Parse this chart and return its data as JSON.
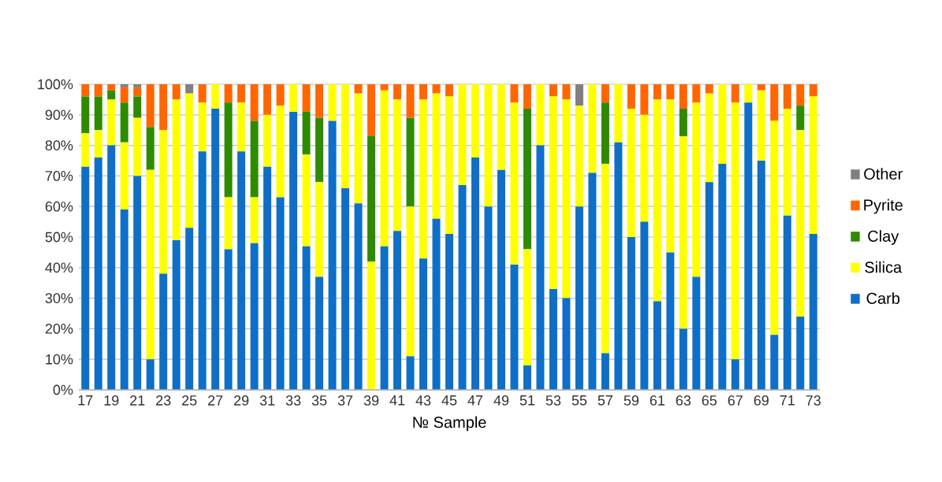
{
  "chart_data": {
    "type": "bar",
    "stacked": true,
    "xlabel": "№ Sample",
    "categories": [
      "17",
      null,
      "19",
      null,
      "21",
      null,
      "23",
      null,
      "25",
      null,
      "27",
      null,
      "29",
      null,
      "31",
      null,
      "33",
      null,
      "35",
      null,
      "37",
      null,
      "39",
      null,
      "41",
      null,
      "43",
      null,
      "45",
      null,
      "47",
      null,
      "49",
      null,
      "51",
      null,
      "53",
      null,
      "55",
      null,
      "57",
      null,
      "59",
      null,
      "61",
      null,
      "63",
      null,
      "65",
      null,
      "67",
      null,
      "69",
      null,
      "71",
      null,
      "73"
    ],
    "series": [
      {
        "name": "Carb",
        "color": "#0f6fc6",
        "values": [
          73,
          76,
          80,
          59,
          70,
          10,
          38,
          49,
          53,
          78,
          92,
          46,
          78,
          48,
          73,
          63,
          91,
          47,
          37,
          88,
          66,
          61,
          0,
          47,
          52,
          11,
          43,
          56,
          51,
          67,
          76,
          60,
          72,
          41,
          8,
          80,
          33,
          30,
          60,
          71,
          12,
          81,
          50,
          55,
          29,
          45,
          20,
          37,
          68,
          74,
          10,
          94,
          75,
          18,
          57,
          24,
          51
        ]
      },
      {
        "name": "Silica",
        "color": "#ffff00",
        "values": [
          11,
          9,
          15,
          22,
          19,
          62,
          47,
          46,
          44,
          16,
          8,
          17,
          16,
          15,
          17,
          30,
          9,
          30,
          31,
          12,
          34,
          36,
          42,
          51,
          43,
          49,
          52,
          41,
          45,
          33,
          24,
          40,
          28,
          53,
          38,
          20,
          63,
          65,
          33,
          29,
          62,
          19,
          42,
          35,
          66,
          50,
          63,
          57,
          29,
          26,
          84,
          6,
          23,
          70,
          35,
          61,
          45
        ]
      },
      {
        "name": "Clay",
        "color": "#2e8b00",
        "values": [
          12,
          11,
          3,
          13,
          7,
          14,
          0,
          0,
          0,
          0,
          0,
          31,
          0,
          25,
          0,
          0,
          0,
          14,
          21,
          0,
          0,
          0,
          41,
          0,
          0,
          29,
          0,
          0,
          0,
          0,
          0,
          0,
          0,
          0,
          46,
          0,
          0,
          0,
          0,
          0,
          20,
          0,
          0,
          0,
          0,
          0,
          9,
          0,
          0,
          0,
          0,
          0,
          0,
          0,
          0,
          8,
          0
        ]
      },
      {
        "name": "Pyrite",
        "color": "#ff6600",
        "values": [
          4,
          4,
          2,
          5,
          3,
          14,
          15,
          5,
          0,
          6,
          0,
          6,
          6,
          12,
          10,
          7,
          0,
          9,
          11,
          0,
          0,
          3,
          17,
          2,
          5,
          11,
          5,
          3,
          4,
          0,
          0,
          0,
          0,
          6,
          8,
          0,
          4,
          5,
          0,
          0,
          6,
          0,
          8,
          10,
          5,
          5,
          8,
          6,
          3,
          0,
          6,
          0,
          2,
          12,
          8,
          7,
          4
        ]
      },
      {
        "name": "Other",
        "color": "#808080",
        "values": [
          0,
          0,
          0,
          1,
          1,
          0,
          0,
          0,
          3,
          0,
          0,
          0,
          0,
          0,
          0,
          0,
          0,
          0,
          0,
          0,
          0,
          0,
          0,
          0,
          0,
          0,
          0,
          0,
          0,
          0,
          0,
          0,
          0,
          0,
          0,
          0,
          0,
          0,
          7,
          0,
          0,
          0,
          0,
          0,
          0,
          0,
          0,
          0,
          0,
          0,
          0,
          0,
          0,
          0,
          0,
          0,
          0
        ]
      }
    ],
    "ylim": [
      0,
      100
    ],
    "yticks": [
      {
        "value": 0,
        "label": "0%"
      },
      {
        "value": 10,
        "label": "10%"
      },
      {
        "value": 20,
        "label": "20%"
      },
      {
        "value": 30,
        "label": "30%"
      },
      {
        "value": 40,
        "label": "40%"
      },
      {
        "value": 50,
        "label": "50%"
      },
      {
        "value": 60,
        "label": "60%"
      },
      {
        "value": 70,
        "label": "70%"
      },
      {
        "value": 80,
        "label": "80%"
      },
      {
        "value": 90,
        "label": "90%"
      },
      {
        "value": 100,
        "label": "100%"
      }
    ],
    "grid": "y",
    "legend": "right"
  }
}
